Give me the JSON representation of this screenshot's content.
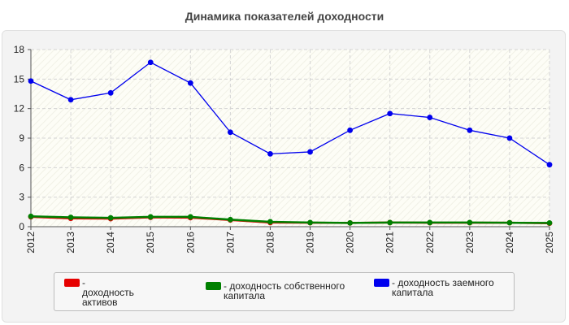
{
  "chart_data": {
    "type": "line",
    "title": "Динамика показателей доходности",
    "xlabel": "",
    "ylabel": "",
    "categories": [
      "2012",
      "2013",
      "2014",
      "2015",
      "2016",
      "2017",
      "2018",
      "2019",
      "2020",
      "2021",
      "2022",
      "2023",
      "2024",
      "2025"
    ],
    "ylim": [
      0,
      18
    ],
    "yticks": [
      "0",
      "3",
      "6",
      "9",
      "12",
      "15",
      "18"
    ],
    "grid": true,
    "legend_position": "bottom",
    "series": [
      {
        "name": "- доходность активов",
        "color": "#e60000",
        "values": [
          1.0,
          0.85,
          0.82,
          0.95,
          0.92,
          0.68,
          0.42,
          0.4,
          0.38,
          0.42,
          0.4,
          0.4,
          0.4,
          0.35
        ]
      },
      {
        "name": "- доходность собственного капитала",
        "color": "#008000",
        "values": [
          1.05,
          0.95,
          0.9,
          1.0,
          1.0,
          0.72,
          0.5,
          0.42,
          0.38,
          0.42,
          0.42,
          0.42,
          0.4,
          0.38
        ]
      },
      {
        "name": "- доходность заемного капитала",
        "color": "#0000ee",
        "values": [
          14.8,
          12.9,
          13.6,
          16.7,
          14.6,
          9.6,
          7.4,
          7.6,
          9.8,
          11.5,
          11.1,
          9.8,
          9.0,
          6.3
        ]
      }
    ]
  }
}
